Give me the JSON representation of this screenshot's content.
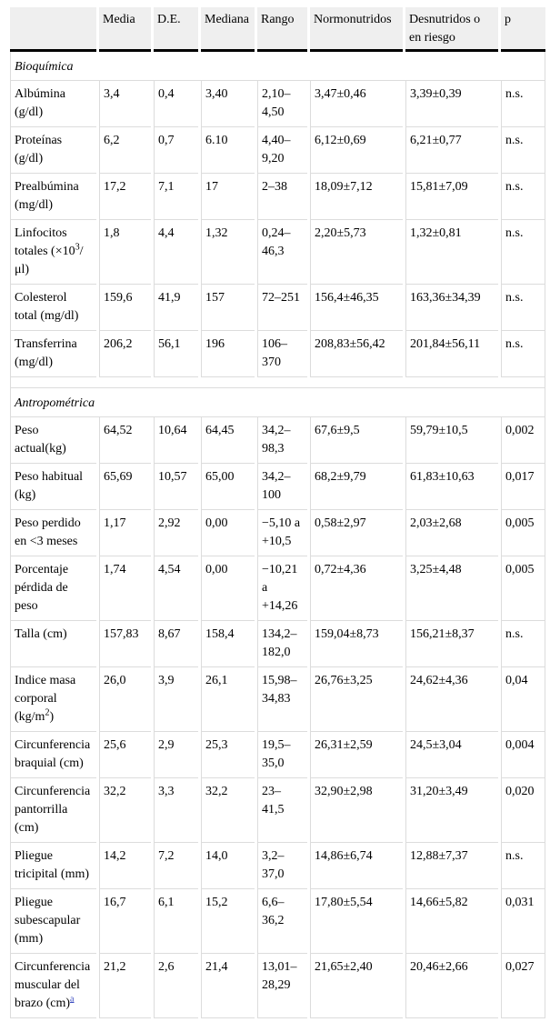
{
  "colors": {
    "page_bg": "#ffffff",
    "text": "#000000",
    "header_bg": "#efefef",
    "border": "#dcdcdc",
    "header_rule": "#000000",
    "link_blue": "#3b4cc0"
  },
  "table": {
    "columns": [
      "",
      "Media",
      "D.E.",
      "Mediana",
      "Rango",
      "Normonutridos",
      "Desnutridos o en riesgo",
      "p"
    ],
    "sections": [
      {
        "title": "Bioquímica",
        "spacer_before": false,
        "rows": [
          {
            "label": "Albúmina (g/dl)",
            "values": [
              "3,4",
              "0,4",
              "3,40",
              "2,10–4,50",
              "3,47±0,46",
              "3,39±0,39",
              "n.s."
            ]
          },
          {
            "label": "Proteínas (g/dl)",
            "values": [
              "6,2",
              "0,7",
              "6.10",
              "4,40–9,20",
              "6,12±0,69",
              "6,21±0,77",
              "n.s."
            ]
          },
          {
            "label": "Prealbúmina (mg/dl)",
            "values": [
              "17,2",
              "7,1",
              "17",
              "2–38",
              "18,09±7,12",
              "15,81±7,09",
              "n.s."
            ]
          },
          {
            "label": "Linfocitos totales (×10^{3}/μl)",
            "values": [
              "1,8",
              "4,4",
              "1,32",
              "0,24–46,3",
              "2,20±5,73",
              "1,32±0,81",
              "n.s."
            ]
          },
          {
            "label": "Colesterol total (mg/dl)",
            "values": [
              "159,6",
              "41,9",
              "157",
              "72–251",
              "156,4±46,35",
              "163,36±34,39",
              "n.s."
            ]
          },
          {
            "label": "Transferrina (mg/dl)",
            "values": [
              "206,2",
              "56,1",
              "196",
              "106–370",
              "208,83±56,42",
              "201,84±56,11",
              "n.s."
            ]
          }
        ]
      },
      {
        "title": "Antropométrica",
        "spacer_before": true,
        "rows": [
          {
            "label": "Peso actual(kg)",
            "values": [
              "64,52",
              "10,64",
              "64,45",
              "34,2–98,3",
              "67,6±9,5",
              "59,79±10,5",
              "0,002"
            ]
          },
          {
            "label": "Peso habitual (kg)",
            "values": [
              "65,69",
              "10,57",
              "65,00",
              "34,2–100",
              "68,2±9,79",
              "61,83±10,63",
              "0,017"
            ]
          },
          {
            "label": "Peso perdido en <3 meses",
            "values": [
              "1,17",
              "2,92",
              "0,00",
              "−5,10 a +10,5",
              "0,58±2,97",
              "2,03±2,68",
              "0,005"
            ]
          },
          {
            "label": "Porcentaje pérdida de peso",
            "values": [
              "1,74",
              "4,54",
              "0,00",
              "−10,21 a +14,26",
              "0,72±4,36",
              "3,25±4,48",
              "0,005"
            ]
          },
          {
            "label": "Talla (cm)",
            "values": [
              "157,83",
              "8,67",
              "158,4",
              "134,2–182,0",
              "159,04±8,73",
              "156,21±8,37",
              "n.s."
            ]
          },
          {
            "label": "Indice masa corporal (kg/m^{2})",
            "values": [
              "26,0",
              "3,9",
              "26,1",
              "15,98–34,83",
              "26,76±3,25",
              "24,62±4,36",
              "0,04"
            ]
          },
          {
            "label": "Circunferencia braquial (cm)",
            "values": [
              "25,6",
              "2,9",
              "25,3",
              "19,5–35,0",
              "26,31±2,59",
              "24,5±3,04",
              "0,004"
            ]
          },
          {
            "label": "Circunferencia pantorrilla (cm)",
            "values": [
              "32,2",
              "3,3",
              "32,2",
              "23–41,5",
              "32,90±2,98",
              "31,20±3,49",
              "0,020"
            ]
          },
          {
            "label": "Pliegue tricipital (mm)",
            "values": [
              "14,2",
              "7,2",
              "14,0",
              "3,2–37,0",
              "14,86±6,74",
              "12,88±7,37",
              "n.s."
            ]
          },
          {
            "label": "Pliegue subescapular (mm)",
            "values": [
              "16,7",
              "6,1",
              "15,2",
              "6,6–36,2",
              "17,80±5,54",
              "14,66±5,82",
              "0,031"
            ]
          },
          {
            "label": "Circunferencia muscular del brazo (cm)",
            "footnote": "a",
            "values": [
              "21,2",
              "2,6",
              "21,4",
              "13,01–28,29",
              "21,65±2,40",
              "20,46±2,66",
              "0,027"
            ]
          }
        ]
      }
    ]
  }
}
